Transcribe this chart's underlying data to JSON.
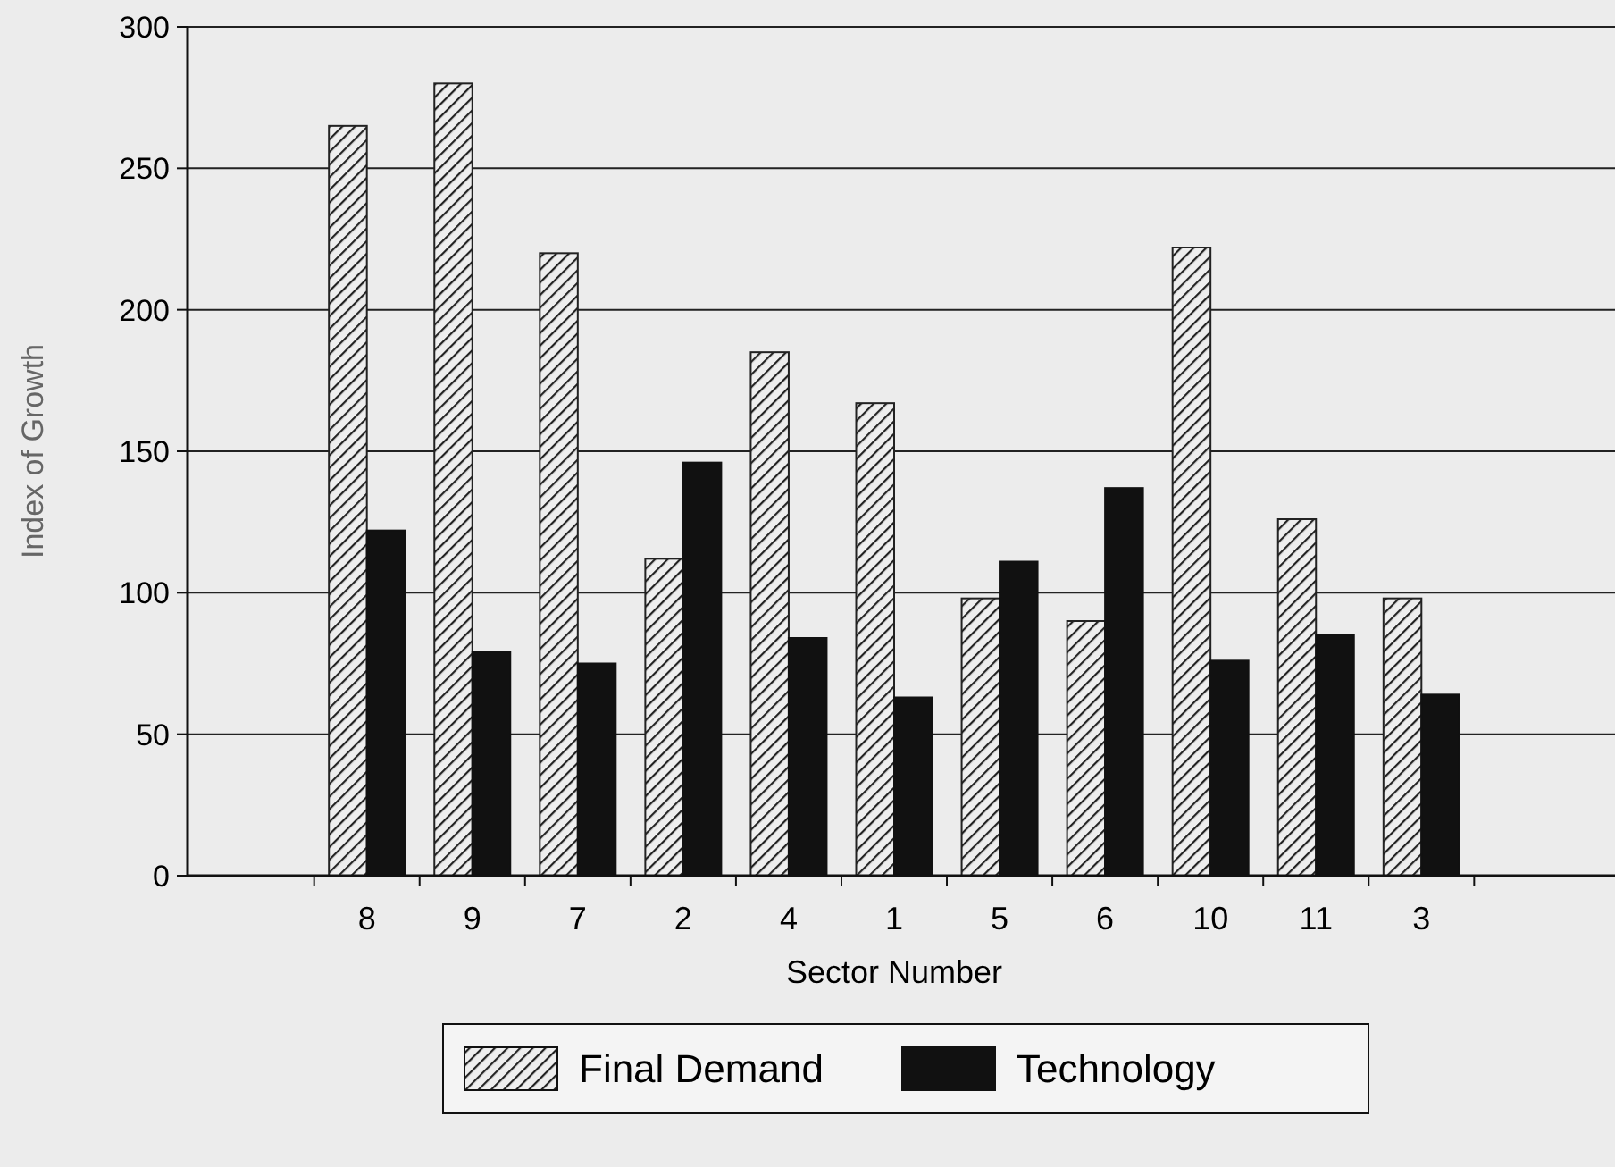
{
  "chart_data": {
    "type": "bar",
    "xlabel": "Sector Number",
    "ylabel": "Index of Growth",
    "categories": [
      "8",
      "9",
      "7",
      "2",
      "4",
      "1",
      "5",
      "6",
      "10",
      "11",
      "3"
    ],
    "series": [
      {
        "name": "Final Demand",
        "color": "#222222",
        "values": [
          265,
          280,
          220,
          112,
          185,
          167,
          98,
          90,
          222,
          126,
          98
        ]
      },
      {
        "name": "Technology",
        "color": "#111111",
        "values": [
          122,
          79,
          75,
          146,
          84,
          63,
          111,
          137,
          76,
          85,
          64
        ]
      }
    ],
    "ylim": [
      0,
      300
    ],
    "yticks": [
      0,
      50,
      100,
      150,
      200,
      250,
      300
    ],
    "grid": "y",
    "legend": "bottom"
  }
}
